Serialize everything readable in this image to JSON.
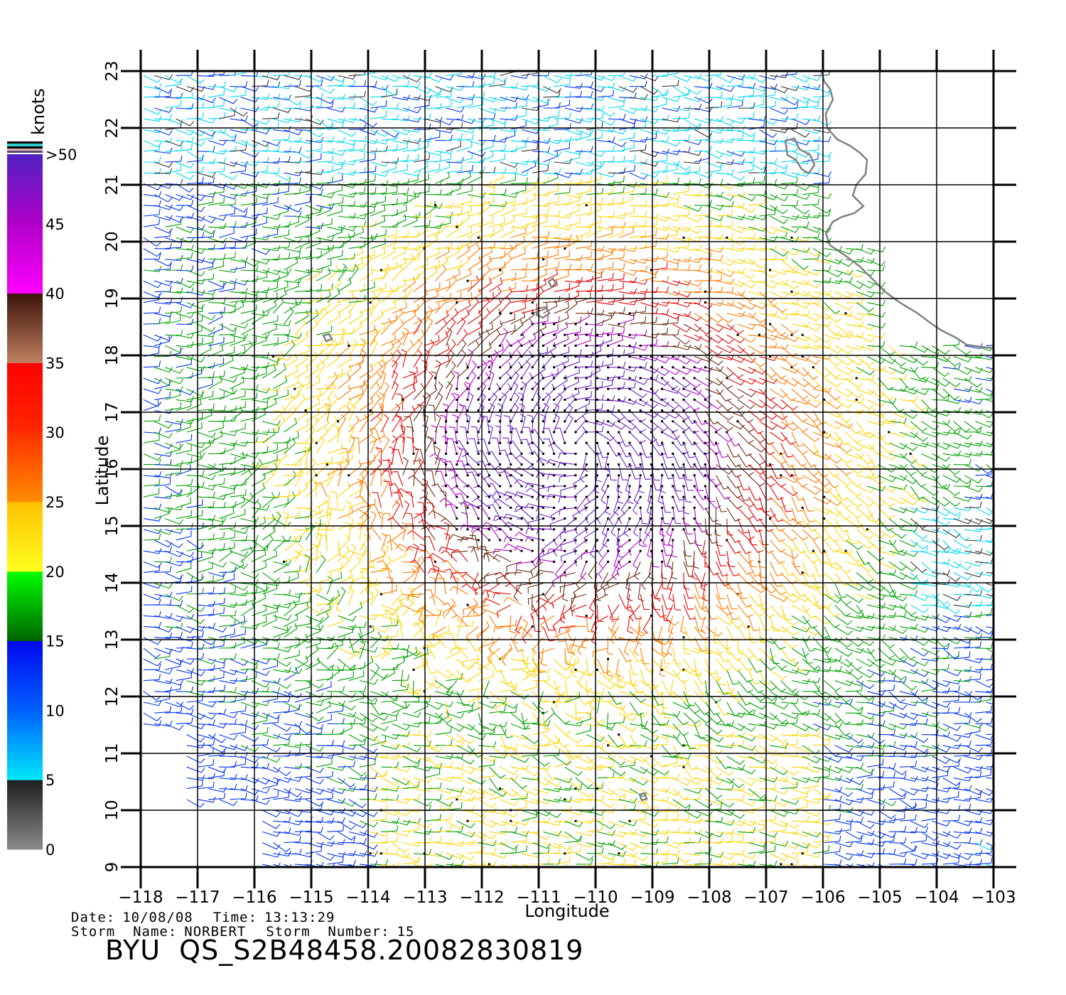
{
  "colorbar": {
    "unit": "knots",
    "labels": [
      "0",
      "5",
      "10",
      "15",
      "20",
      "25",
      "30",
      "35",
      "40",
      "45",
      ">50"
    ],
    "stops": [
      {
        "from": 0,
        "to": 5,
        "colors": [
          "#8a8a8a",
          "#1e1e1e"
        ]
      },
      {
        "from": 5,
        "to": 10,
        "colors": [
          "#00e8f8",
          "#0060ff"
        ]
      },
      {
        "from": 10,
        "to": 15,
        "colors": [
          "#0060ff",
          "#0008ee"
        ]
      },
      {
        "from": 15,
        "to": 20,
        "colors": [
          "#006400",
          "#00ff00"
        ]
      },
      {
        "from": 20,
        "to": 25,
        "colors": [
          "#ffff20",
          "#ffc000"
        ]
      },
      {
        "from": 25,
        "to": 30,
        "colors": [
          "#ff8c00",
          "#ff3000"
        ]
      },
      {
        "from": 30,
        "to": 35,
        "colors": [
          "#ff2800",
          "#ff0000"
        ]
      },
      {
        "from": 35,
        "to": 40,
        "colors": [
          "#c08060",
          "#3a1208"
        ]
      },
      {
        "from": 40,
        "to": 45,
        "colors": [
          "#ff00ff",
          "#b000c8"
        ]
      },
      {
        "from": 45,
        "to": 50,
        "colors": [
          "#b000c8",
          "#5020c0"
        ]
      }
    ]
  },
  "map": {
    "lon_range": [
      -118,
      -103
    ],
    "lat_range": [
      9,
      23
    ],
    "lon_ticks": [
      "−118",
      "−117",
      "−116",
      "−115",
      "−114",
      "−113",
      "−112",
      "−111",
      "−110",
      "−109",
      "−108",
      "−107",
      "−106",
      "−105",
      "−104",
      "−103"
    ],
    "lat_ticks": [
      "9",
      "10",
      "11",
      "12",
      "13",
      "14",
      "15",
      "16",
      "17",
      "18",
      "19",
      "20",
      "21",
      "22",
      "23"
    ],
    "xlabel": "Longitude",
    "ylabel": "Latitude",
    "storm_center": {
      "lon": -110.3,
      "lat": 16.4
    },
    "coastline_color": "#808080",
    "vector_style": "wind barbs colored by speed"
  },
  "footer": {
    "date_label": "Date:",
    "date_value": "10/08/08",
    "time_label": "Time:",
    "time_value": "13:13:29",
    "storm_name_label": "Storm  Name:",
    "storm_name_value": "NORBERT",
    "storm_number_label": "Storm  Number:",
    "storm_number_value": "15",
    "file_title": "BYU  QS_S2B48458.20082830819"
  }
}
